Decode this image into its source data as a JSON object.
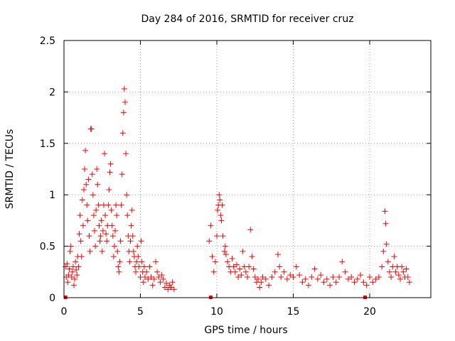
{
  "chart_data": {
    "type": "scatter",
    "title": "Day 284 of 2016, SRMTID for receiver cruz",
    "xlabel": "GPS time / hours",
    "ylabel": "SRMTID / TECUs",
    "xlim": [
      0,
      24
    ],
    "ylim": [
      0,
      2.5
    ],
    "xticks": [
      0,
      5,
      10,
      15,
      20
    ],
    "xtick_labels": [
      "0",
      "5",
      "10",
      "15",
      "20"
    ],
    "yticks": [
      0,
      0.5,
      1,
      1.5,
      2,
      2.5
    ],
    "ytick_labels": [
      "0",
      "0.5",
      "1",
      "1.5",
      "2",
      "2.5"
    ],
    "grid": true,
    "marker": "plus",
    "color": "#ff0000",
    "series": [
      {
        "name": "SRMTID",
        "points": [
          [
            0.1,
            0.3
          ],
          [
            0.15,
            0.2
          ],
          [
            0.2,
            0.33
          ],
          [
            0.25,
            0.15
          ],
          [
            0.3,
            0.22
          ],
          [
            0.35,
            0.28
          ],
          [
            0.4,
            0.45
          ],
          [
            0.45,
            0.5
          ],
          [
            0.5,
            0.2
          ],
          [
            0.55,
            0.25
          ],
          [
            0.6,
            0.3
          ],
          [
            0.65,
            0.12
          ],
          [
            0.7,
            0.18
          ],
          [
            0.75,
            0.35
          ],
          [
            0.8,
            0.27
          ],
          [
            0.85,
            0.22
          ],
          [
            0.9,
            0.4
          ],
          [
            0.95,
            0.3
          ],
          [
            1.0,
            0.62
          ],
          [
            1.05,
            0.8
          ],
          [
            1.1,
            0.55
          ],
          [
            1.15,
            0.4
          ],
          [
            1.2,
            0.95
          ],
          [
            1.25,
            0.7
          ],
          [
            1.3,
            1.05
          ],
          [
            1.35,
            1.25
          ],
          [
            1.4,
            1.43
          ],
          [
            1.45,
            1.1
          ],
          [
            1.5,
            0.9
          ],
          [
            1.55,
            0.75
          ],
          [
            1.6,
            1.15
          ],
          [
            1.65,
            0.6
          ],
          [
            1.7,
            0.45
          ],
          [
            1.75,
            1.64
          ],
          [
            1.8,
            1.64
          ],
          [
            1.85,
            1.2
          ],
          [
            1.9,
            1.0
          ],
          [
            1.95,
            0.8
          ],
          [
            2.0,
            0.65
          ],
          [
            2.05,
            0.5
          ],
          [
            2.1,
            0.85
          ],
          [
            2.15,
            1.25
          ],
          [
            2.2,
            1.1
          ],
          [
            2.25,
            0.9
          ],
          [
            2.3,
            0.7
          ],
          [
            2.35,
            0.55
          ],
          [
            2.4,
            0.6
          ],
          [
            2.45,
            0.75
          ],
          [
            2.5,
            0.45
          ],
          [
            2.55,
            0.65
          ],
          [
            2.6,
            0.9
          ],
          [
            2.65,
            1.4
          ],
          [
            2.7,
            0.8
          ],
          [
            2.75,
            0.62
          ],
          [
            2.8,
            0.55
          ],
          [
            2.85,
            0.7
          ],
          [
            2.9,
            0.9
          ],
          [
            2.95,
            1.05
          ],
          [
            3.0,
            1.22
          ],
          [
            3.05,
            1.3
          ],
          [
            3.1,
            0.85
          ],
          [
            3.15,
            0.7
          ],
          [
            3.2,
            0.6
          ],
          [
            3.25,
            0.4
          ],
          [
            3.3,
            0.5
          ],
          [
            3.35,
            0.65
          ],
          [
            3.4,
            0.9
          ],
          [
            3.45,
            0.8
          ],
          [
            3.5,
            0.45
          ],
          [
            3.55,
            0.3
          ],
          [
            3.6,
            0.25
          ],
          [
            3.65,
            0.35
          ],
          [
            3.7,
            0.55
          ],
          [
            3.75,
            0.9
          ],
          [
            3.8,
            1.2
          ],
          [
            3.85,
            1.6
          ],
          [
            3.9,
            1.8
          ],
          [
            3.95,
            2.03
          ],
          [
            4.0,
            1.9
          ],
          [
            4.05,
            1.4
          ],
          [
            4.1,
            1.0
          ],
          [
            4.15,
            0.8
          ],
          [
            4.2,
            0.6
          ],
          [
            4.25,
            0.45
          ],
          [
            4.3,
            0.35
          ],
          [
            4.35,
            0.55
          ],
          [
            4.4,
            0.7
          ],
          [
            4.45,
            0.85
          ],
          [
            4.5,
            0.6
          ],
          [
            4.55,
            0.45
          ],
          [
            4.6,
            0.4
          ],
          [
            4.65,
            0.3
          ],
          [
            4.7,
            0.25
          ],
          [
            4.75,
            0.35
          ],
          [
            4.8,
            0.5
          ],
          [
            4.85,
            0.4
          ],
          [
            4.9,
            0.3
          ],
          [
            5.0,
            0.2
          ],
          [
            5.05,
            0.55
          ],
          [
            5.1,
            0.35
          ],
          [
            5.15,
            0.25
          ],
          [
            5.2,
            0.15
          ],
          [
            5.25,
            0.3
          ],
          [
            5.3,
            0.2
          ],
          [
            5.4,
            0.25
          ],
          [
            5.5,
            0.18
          ],
          [
            5.6,
            0.3
          ],
          [
            5.7,
            0.2
          ],
          [
            5.8,
            0.12
          ],
          [
            5.9,
            0.18
          ],
          [
            6.0,
            0.35
          ],
          [
            6.1,
            0.25
          ],
          [
            6.2,
            0.2
          ],
          [
            6.3,
            0.15
          ],
          [
            6.4,
            0.22
          ],
          [
            6.5,
            0.18
          ],
          [
            6.6,
            0.1
          ],
          [
            6.7,
            0.14
          ],
          [
            6.8,
            0.08
          ],
          [
            6.9,
            0.12
          ],
          [
            7.0,
            0.1
          ],
          [
            7.1,
            0.15
          ],
          [
            7.2,
            0.08
          ],
          [
            9.5,
            0.55
          ],
          [
            9.6,
            0.7
          ],
          [
            9.7,
            0.4
          ],
          [
            9.8,
            0.25
          ],
          [
            9.9,
            0.35
          ],
          [
            10.0,
            0.6
          ],
          [
            10.05,
            0.85
          ],
          [
            10.1,
            0.9
          ],
          [
            10.15,
            1.0
          ],
          [
            10.2,
            0.95
          ],
          [
            10.25,
            0.8
          ],
          [
            10.3,
            0.75
          ],
          [
            10.35,
            0.9
          ],
          [
            10.4,
            0.6
          ],
          [
            10.5,
            0.45
          ],
          [
            10.55,
            0.5
          ],
          [
            10.6,
            0.42
          ],
          [
            10.7,
            0.35
          ],
          [
            10.8,
            0.3
          ],
          [
            10.9,
            0.25
          ],
          [
            11.0,
            0.38
          ],
          [
            11.1,
            0.3
          ],
          [
            11.2,
            0.25
          ],
          [
            11.3,
            0.32
          ],
          [
            11.4,
            0.2
          ],
          [
            11.5,
            0.28
          ],
          [
            11.6,
            0.22
          ],
          [
            11.7,
            0.45
          ],
          [
            11.8,
            0.3
          ],
          [
            11.9,
            0.25
          ],
          [
            12.0,
            0.2
          ],
          [
            12.1,
            0.3
          ],
          [
            12.2,
            0.66
          ],
          [
            12.3,
            0.4
          ],
          [
            12.4,
            0.28
          ],
          [
            12.5,
            0.2
          ],
          [
            12.6,
            0.15
          ],
          [
            12.7,
            0.18
          ],
          [
            12.8,
            0.1
          ],
          [
            12.9,
            0.15
          ],
          [
            13.0,
            0.2
          ],
          [
            13.2,
            0.18
          ],
          [
            13.4,
            0.12
          ],
          [
            13.6,
            0.2
          ],
          [
            13.8,
            0.25
          ],
          [
            14.0,
            0.42
          ],
          [
            14.1,
            0.3
          ],
          [
            14.2,
            0.2
          ],
          [
            14.4,
            0.25
          ],
          [
            14.6,
            0.18
          ],
          [
            14.8,
            0.22
          ],
          [
            15.0,
            0.2
          ],
          [
            15.2,
            0.3
          ],
          [
            15.4,
            0.22
          ],
          [
            15.6,
            0.15
          ],
          [
            15.8,
            0.18
          ],
          [
            16.0,
            0.12
          ],
          [
            16.2,
            0.2
          ],
          [
            16.4,
            0.28
          ],
          [
            16.6,
            0.18
          ],
          [
            16.8,
            0.22
          ],
          [
            17.0,
            0.15
          ],
          [
            17.2,
            0.18
          ],
          [
            17.4,
            0.12
          ],
          [
            17.6,
            0.2
          ],
          [
            17.8,
            0.15
          ],
          [
            18.0,
            0.2
          ],
          [
            18.2,
            0.35
          ],
          [
            18.4,
            0.25
          ],
          [
            18.6,
            0.18
          ],
          [
            18.8,
            0.2
          ],
          [
            19.0,
            0.15
          ],
          [
            19.2,
            0.18
          ],
          [
            19.4,
            0.22
          ],
          [
            19.6,
            0.15
          ],
          [
            19.8,
            0.12
          ],
          [
            20.0,
            0.2
          ],
          [
            20.2,
            0.15
          ],
          [
            20.4,
            0.18
          ],
          [
            20.6,
            0.2
          ],
          [
            20.8,
            0.3
          ],
          [
            20.9,
            0.45
          ],
          [
            21.0,
            0.84
          ],
          [
            21.05,
            0.72
          ],
          [
            21.1,
            0.52
          ],
          [
            21.2,
            0.35
          ],
          [
            21.3,
            0.25
          ],
          [
            21.4,
            0.2
          ],
          [
            21.5,
            0.3
          ],
          [
            21.6,
            0.4
          ],
          [
            21.7,
            0.25
          ],
          [
            21.8,
            0.3
          ],
          [
            21.9,
            0.22
          ],
          [
            22.0,
            0.18
          ],
          [
            22.1,
            0.3
          ],
          [
            22.2,
            0.25
          ],
          [
            22.3,
            0.2
          ],
          [
            22.4,
            0.28
          ],
          [
            22.5,
            0.2
          ],
          [
            22.6,
            0.15
          ]
        ]
      }
    ],
    "gap_markers_x": [
      0.1,
      9.6,
      19.7
    ]
  }
}
